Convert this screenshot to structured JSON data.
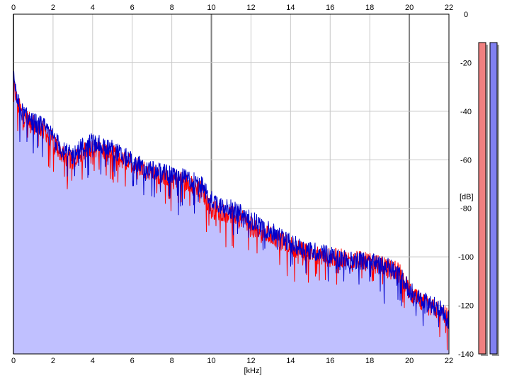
{
  "chart_data": {
    "type": "area",
    "xlabel": "[kHz]",
    "ylabel": "[dB]",
    "xlim": [
      0,
      22
    ],
    "ylim": [
      -140,
      0
    ],
    "x_ticks": [
      0,
      2,
      4,
      6,
      8,
      10,
      12,
      14,
      16,
      18,
      20,
      22
    ],
    "y_ticks": [
      0,
      -20,
      -40,
      -60,
      -80,
      -100,
      -120,
      -140
    ],
    "grid": true,
    "colors": {
      "fill": "#c0c0ff",
      "left_channel": "#ff0000",
      "right_channel": "#0000cc",
      "meter_left": "#f08080",
      "meter_right": "#8080f0",
      "grid_major": "#808080",
      "grid_minor": "#c8c8c8"
    },
    "series": [
      {
        "x": [
          0,
          0.2,
          0.5,
          1,
          1.5,
          2,
          2.5,
          3,
          3.5,
          4,
          4.5,
          5,
          5.5,
          6,
          6.5,
          7,
          7.5,
          8,
          8.5,
          9,
          9.5,
          10,
          10.5,
          11,
          11.5,
          12,
          12.5,
          13,
          13.5,
          14,
          14.5,
          15,
          15.5,
          16,
          16.5,
          17,
          17.5,
          18,
          18.5,
          19,
          19.5,
          20,
          20.5,
          21,
          21.5,
          22
        ],
        "values": [
          -28,
          -36,
          -42,
          -45,
          -47,
          -52,
          -58,
          -60,
          -56,
          -54,
          -56,
          -57,
          -60,
          -61,
          -63,
          -65,
          -66,
          -67,
          -68,
          -70,
          -72,
          -80,
          -81,
          -82,
          -84,
          -87,
          -90,
          -91,
          -93,
          -95,
          -97,
          -98,
          -99,
          -100,
          -100,
          -101,
          -101,
          -102,
          -103,
          -104,
          -106,
          -114,
          -118,
          -120,
          -122,
          -125
        ]
      },
      {
        "x": [
          0,
          0.2,
          0.5,
          1,
          1.5,
          2,
          2.5,
          3,
          3.5,
          4,
          4.5,
          5,
          5.5,
          6,
          6.5,
          7,
          7.5,
          8,
          8.5,
          9,
          9.5,
          10,
          10.5,
          11,
          11.5,
          12,
          12.5,
          13,
          13.5,
          14,
          14.5,
          15,
          15.5,
          16,
          16.5,
          17,
          17.5,
          18,
          18.5,
          19,
          19.5,
          20,
          20.5,
          21,
          21.5,
          22
        ],
        "values": [
          -25,
          -35,
          -41,
          -44,
          -46,
          -50,
          -56,
          -58,
          -54,
          -52,
          -54,
          -55,
          -58,
          -60,
          -62,
          -64,
          -65,
          -66,
          -67,
          -68,
          -70,
          -76,
          -78,
          -80,
          -82,
          -84,
          -87,
          -89,
          -91,
          -94,
          -96,
          -97,
          -98,
          -99,
          -100,
          -101,
          -101,
          -102,
          -103,
          -104,
          -107,
          -113,
          -117,
          -119,
          -121,
          -126
        ]
      }
    ],
    "meters": [
      {
        "value": 1.0
      },
      {
        "value": 1.0
      }
    ]
  }
}
